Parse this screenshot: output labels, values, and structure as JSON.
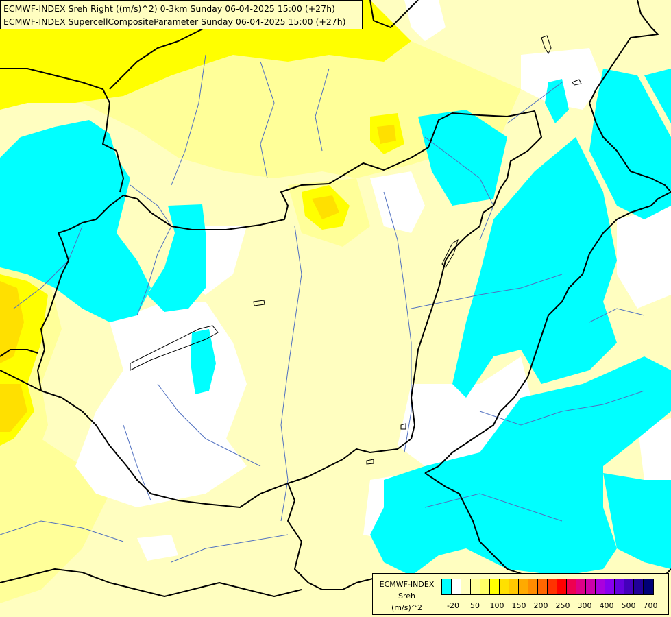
{
  "header": {
    "title_line1": "ECMWF-INDEX Sreh Right ((m/s)^2) 0-3km Sunday 06-04-2025 15:00 (+27h)",
    "title_line2": "ECMWF-INDEX SupercellCompositeParameter Sunday 06-04-2025 15:00 (+27h)"
  },
  "legend": {
    "line1": "ECMWF-INDEX",
    "line2": "Sreh",
    "line3": "(m/s)^2",
    "colors": [
      "#00ffff",
      "#ffffff",
      "#fffec0",
      "#ffff99",
      "#ffff66",
      "#ffff00",
      "#ffe000",
      "#ffc800",
      "#ffaa00",
      "#ff8c00",
      "#ff6600",
      "#ff3300",
      "#ff0000",
      "#ee0050",
      "#dd0088",
      "#cc00aa",
      "#aa00dd",
      "#8800ee",
      "#6600dd",
      "#4400bb",
      "#220099",
      "#000077"
    ],
    "ticks": [
      "-20",
      "50",
      "100",
      "150",
      "200",
      "250",
      "300",
      "400",
      "500",
      "700"
    ]
  },
  "palette": {
    "background": "#fffec0",
    "cyan": "#00ffff",
    "white": "#ffffff",
    "light_yellow": "#ffff99",
    "yellow": "#ffff00",
    "gold": "#ffe000",
    "river": "#5070c0",
    "border": "#000000"
  }
}
